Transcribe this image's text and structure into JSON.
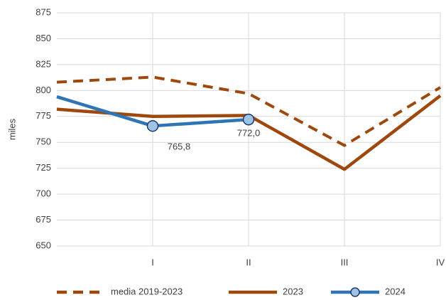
{
  "chart_data": {
    "type": "line",
    "categories": [
      null,
      "I",
      "II",
      "III",
      "IV"
    ],
    "ylabel": "miles",
    "ylim": [
      650,
      875
    ],
    "yticks": [
      650,
      675,
      700,
      725,
      750,
      775,
      800,
      825,
      850,
      875
    ],
    "grid": true,
    "legend": "bottom",
    "series": [
      {
        "name": "media 2019-2023",
        "color": "#9e480e",
        "dash": true,
        "values": [
          808,
          813,
          797,
          747,
          803
        ]
      },
      {
        "name": "2023",
        "color": "#9e480e",
        "values": [
          782,
          775,
          776,
          724,
          795
        ]
      },
      {
        "name": "2024",
        "color": "#2e75b6",
        "marker": "circle",
        "values": [
          794,
          765.8,
          772.0,
          null,
          null
        ],
        "value_labels": [
          null,
          "765,8",
          "772,0",
          null,
          null
        ]
      }
    ]
  }
}
